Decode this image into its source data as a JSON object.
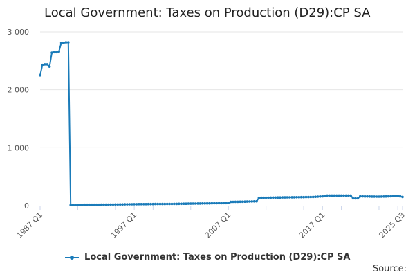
{
  "title": "Local Government: Taxes on Production (D29):CP SA",
  "source_label": "Source:",
  "colors": {
    "series": "#1a7bb9",
    "grid": "#e6e6e6",
    "axis": "#ccd6eb",
    "tick_text": "#555555"
  },
  "chart_data": {
    "type": "line",
    "title": "Local Government: Taxes on Production (D29):CP SA",
    "xlabel": "",
    "ylabel": "",
    "ylim": [
      0,
      3000
    ],
    "yticks": [
      0,
      1000,
      2000,
      3000
    ],
    "ytick_labels": [
      "0",
      "1 000",
      "2 000",
      "3 000"
    ],
    "xticks": [
      "1987 Q1",
      "1997 Q1",
      "2007 Q1",
      "2017 Q1",
      "2025 Q3"
    ],
    "grid": true,
    "legend": "bottom-center",
    "series": [
      {
        "name": "Local Government: Taxes on Production (D29):CP SA",
        "x": [
          "1987 Q1",
          "1987 Q2",
          "1987 Q3",
          "1987 Q4",
          "1988 Q1",
          "1988 Q2",
          "1988 Q3",
          "1988 Q4",
          "1989 Q1",
          "1989 Q2",
          "1989 Q3",
          "1989 Q4",
          "1990 Q1",
          "1990 Q2",
          "1990 Q3",
          "1990 Q4",
          "1991 Q4",
          "1993 Q1",
          "1995 Q1",
          "1997 Q1",
          "1999 Q1",
          "2001 Q1",
          "2003 Q1",
          "2005 Q1",
          "2007 Q1",
          "2007 Q2",
          "2009 Q1",
          "2010 Q1",
          "2010 Q2",
          "2012 Q1",
          "2014 Q1",
          "2016 Q1",
          "2017 Q1",
          "2017 Q3",
          "2019 Q1",
          "2020 Q1",
          "2020 Q2",
          "2020 Q4",
          "2021 Q1",
          "2021 Q2",
          "2023 Q1",
          "2024 Q1",
          "2025 Q1",
          "2025 Q3"
        ],
        "values": [
          2250,
          2430,
          2440,
          2440,
          2400,
          2640,
          2650,
          2650,
          2660,
          2810,
          2810,
          2820,
          2820,
          10,
          10,
          10,
          15,
          15,
          20,
          25,
          28,
          30,
          35,
          40,
          45,
          65,
          70,
          75,
          135,
          140,
          145,
          150,
          160,
          175,
          175,
          175,
          125,
          125,
          160,
          160,
          155,
          160,
          170,
          150
        ]
      }
    ]
  }
}
